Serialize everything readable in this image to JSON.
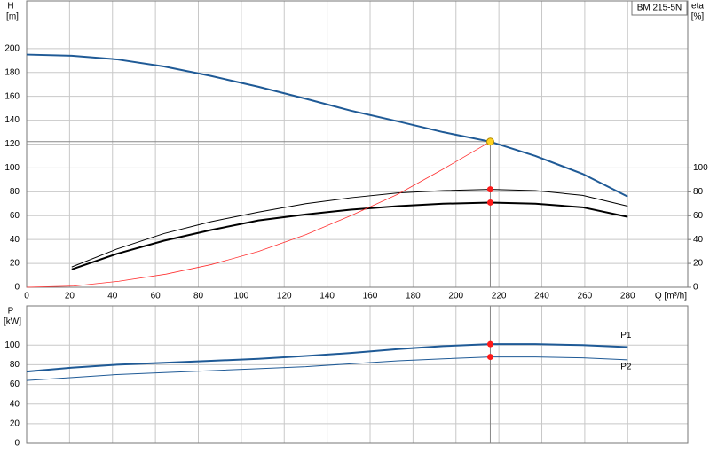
{
  "chart_data": [
    {
      "type": "line",
      "annotation": "BM 215-5N",
      "y_label": "H",
      "y_unit": "[m]",
      "y2_label": "eta",
      "y2_unit": "[%]",
      "x_label": "Q [m³/h]",
      "xlim": [
        0,
        308
      ],
      "xticks": [
        0,
        20,
        40,
        60,
        80,
        100,
        120,
        140,
        160,
        180,
        200,
        220,
        240,
        260,
        280
      ],
      "ylim": [
        0,
        240
      ],
      "yticks": [
        0,
        20,
        40,
        60,
        80,
        100,
        120,
        140,
        160,
        180,
        200
      ],
      "y2lim": [
        0,
        240
      ],
      "y2ticks": [
        0,
        20,
        40,
        60,
        80,
        100
      ],
      "grid": true,
      "operating_point": {
        "x": 216,
        "y": 122
      },
      "series": [
        {
          "color": "#1f5a96",
          "line_width": 2,
          "x": [
            0,
            21,
            42,
            64,
            86,
            108,
            130,
            151,
            173,
            194,
            216,
            237,
            259,
            280
          ],
          "values": [
            195,
            194,
            191,
            185,
            177,
            168,
            158,
            148,
            139,
            130,
            122,
            110,
            95,
            76
          ]
        },
        {
          "color": "#000000",
          "line_width": 1,
          "axis": "y2",
          "marked": true,
          "x": [
            21,
            42,
            64,
            86,
            108,
            130,
            151,
            173,
            194,
            216,
            237,
            259,
            280
          ],
          "values": [
            17,
            32,
            45,
            55,
            63,
            70,
            75,
            79,
            81,
            82,
            81,
            77,
            68
          ]
        },
        {
          "color": "#000000",
          "line_width": 2,
          "axis": "y2",
          "marked": true,
          "x": [
            21,
            42,
            64,
            86,
            108,
            130,
            151,
            173,
            194,
            216,
            237,
            259,
            280
          ],
          "values": [
            15,
            28,
            39,
            48,
            56,
            61,
            65,
            68,
            70,
            71,
            70,
            67,
            59
          ]
        },
        {
          "color": "#ff3030",
          "line_width": 0.8,
          "x": [
            0,
            22,
            43,
            65,
            86,
            108,
            130,
            151,
            173,
            194,
            216
          ],
          "values": [
            0,
            1,
            5,
            11,
            19,
            30,
            44,
            60,
            78,
            99,
            122
          ]
        }
      ]
    },
    {
      "type": "line",
      "y_label": "P",
      "y_unit": "[kW]",
      "xlim": [
        0,
        308
      ],
      "xticks": [
        0,
        20,
        40,
        60,
        80,
        100,
        120,
        140,
        160,
        180,
        200,
        220,
        240,
        260,
        280
      ],
      "show_xtick_labels": false,
      "ylim": [
        0,
        140
      ],
      "yticks": [
        0,
        20,
        40,
        60,
        80,
        100
      ],
      "grid": true,
      "operating_point": {
        "x": 216
      },
      "series": [
        {
          "name": "P1",
          "color": "#1f5a96",
          "line_width": 2,
          "marked": true,
          "x": [
            0,
            21,
            42,
            64,
            86,
            108,
            130,
            151,
            173,
            194,
            216,
            237,
            259,
            280
          ],
          "values": [
            73,
            77,
            80,
            82,
            84,
            86,
            89,
            92,
            96,
            99,
            101,
            101,
            100,
            98
          ]
        },
        {
          "name": "P2",
          "color": "#1f5a96",
          "line_width": 1,
          "marked": true,
          "x": [
            0,
            21,
            42,
            64,
            86,
            108,
            130,
            151,
            173,
            194,
            216,
            237,
            259,
            280
          ],
          "values": [
            64,
            67,
            70,
            72,
            74,
            76,
            78,
            81,
            84,
            86,
            88,
            88,
            87,
            85
          ]
        }
      ]
    }
  ]
}
